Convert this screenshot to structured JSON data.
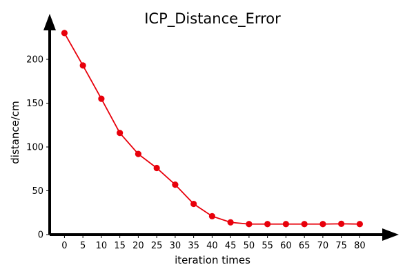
{
  "chart_data": {
    "type": "line",
    "title": "ICP_Distance_Error",
    "xlabel": "iteration times",
    "ylabel": "distance/cm",
    "x": [
      0,
      5,
      10,
      15,
      20,
      25,
      30,
      35,
      40,
      45,
      50,
      55,
      60,
      65,
      70,
      75,
      80
    ],
    "x_tick_labels": [
      "0",
      "5",
      "10",
      "15",
      "20",
      "25",
      "30",
      "35",
      "40",
      "45",
      "50",
      "55",
      "60",
      "65",
      "70",
      "75",
      "80"
    ],
    "y_ticks": [
      0,
      50,
      100,
      150,
      200
    ],
    "y_tick_labels": [
      "0",
      "50",
      "100",
      "150",
      "200"
    ],
    "xlim": [
      -4,
      90
    ],
    "ylim": [
      0,
      250
    ],
    "grid": false,
    "legend": "none",
    "series": [
      {
        "values": [
          230,
          193,
          155,
          116,
          92,
          76,
          57,
          35,
          21,
          14,
          12,
          12,
          12,
          12,
          12,
          12.3,
          12
        ],
        "color": "#e8000b",
        "marker": "circle"
      }
    ]
  }
}
